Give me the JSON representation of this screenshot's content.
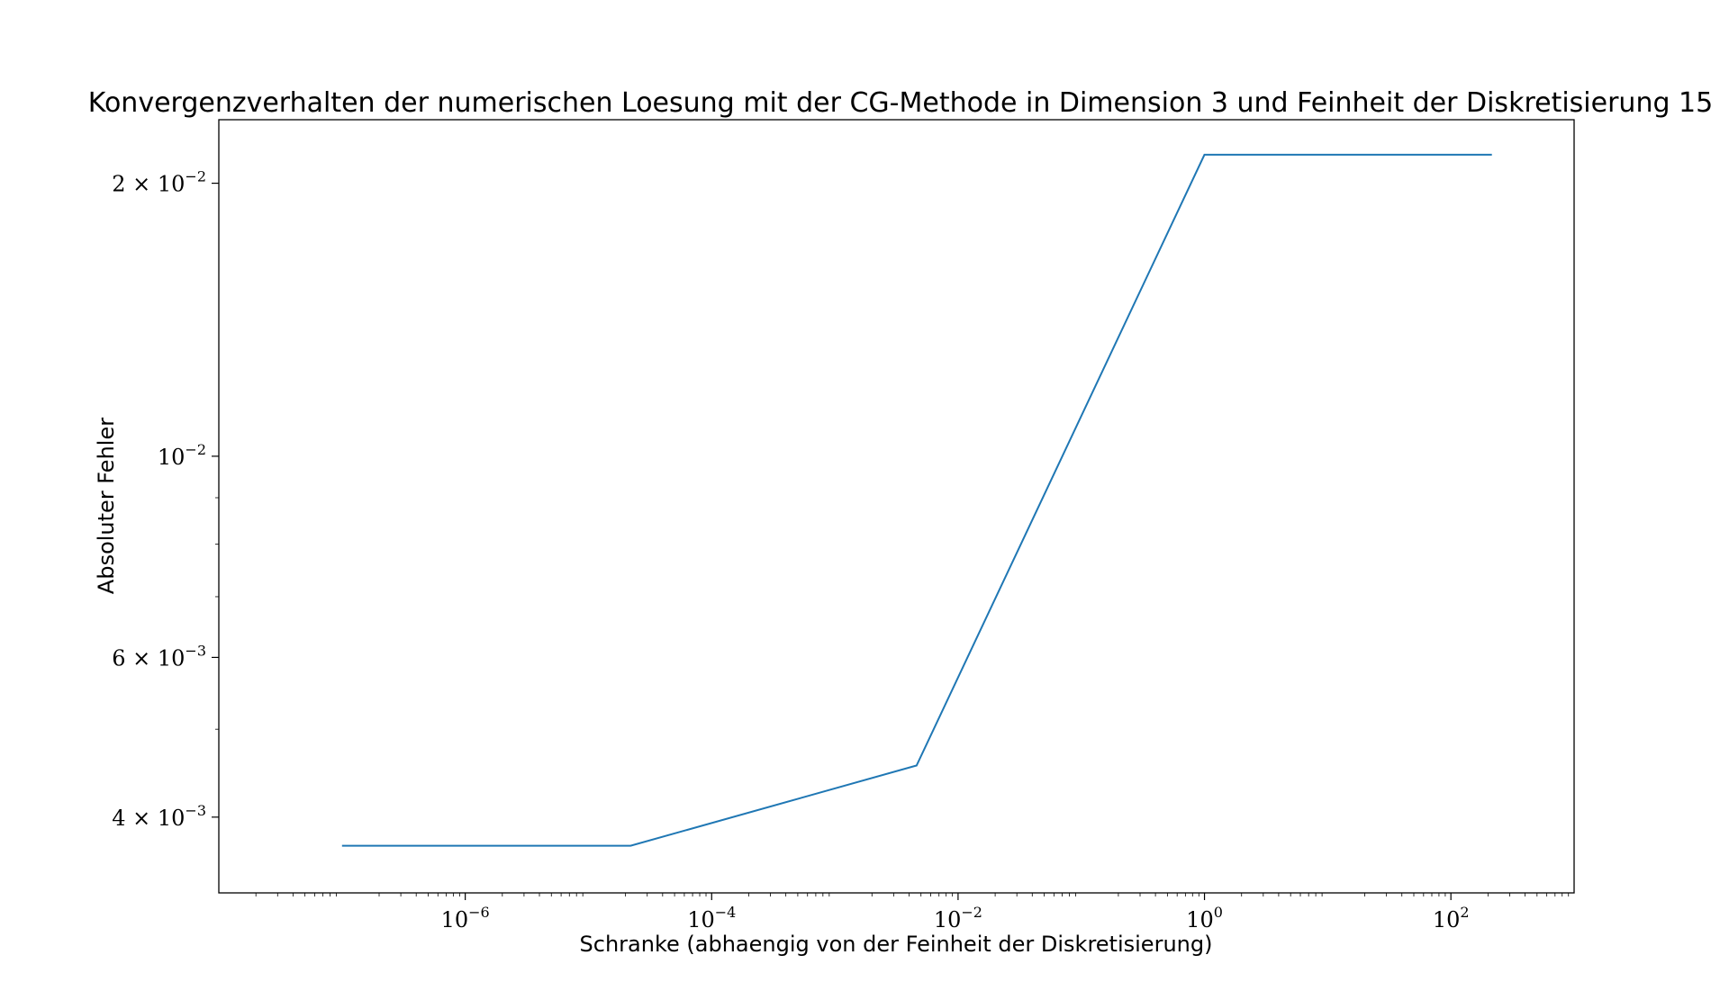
{
  "chart_data": {
    "type": "line",
    "title": "Konvergenzverhalten der numerischen Loesung mit der CG-Methode in Dimension 3 und Feinheit der Diskretisierung 15",
    "xlabel": "Schranke (abhaengig von der Feinheit der Diskretisierung)",
    "ylabel": "Absoluter Fehler",
    "xscale": "log",
    "yscale": "log",
    "xlim": [
      1e-08,
      1000.0
    ],
    "ylim": [
      0.0033,
      0.0235
    ],
    "grid": false,
    "legend": "none",
    "line_color": "#1f77b4",
    "x_ticks": [
      {
        "value": 1e-06,
        "base": "10",
        "exp": "−6"
      },
      {
        "value": 0.0001,
        "base": "10",
        "exp": "−4"
      },
      {
        "value": 0.01,
        "base": "10",
        "exp": "−2"
      },
      {
        "value": 1,
        "base": "10",
        "exp": "0"
      },
      {
        "value": 100,
        "base": "10",
        "exp": "2"
      }
    ],
    "y_ticks": [
      {
        "value": 0.004,
        "base": "4 × 10",
        "exp": "−3"
      },
      {
        "value": 0.006,
        "base": "6 × 10",
        "exp": "−3"
      },
      {
        "value": 0.01,
        "base": "10",
        "exp": "−2"
      },
      {
        "value": 0.02,
        "base": "2 × 10",
        "exp": "−2"
      }
    ],
    "y_minor_ticks": [
      0.005,
      0.007,
      0.008,
      0.009
    ],
    "series": [
      {
        "x": [
          1e-07,
          2.2e-05,
          0.0046,
          1.0,
          215
        ],
        "y": [
          0.00372,
          0.00372,
          0.00456,
          0.0215,
          0.0215
        ]
      }
    ]
  }
}
